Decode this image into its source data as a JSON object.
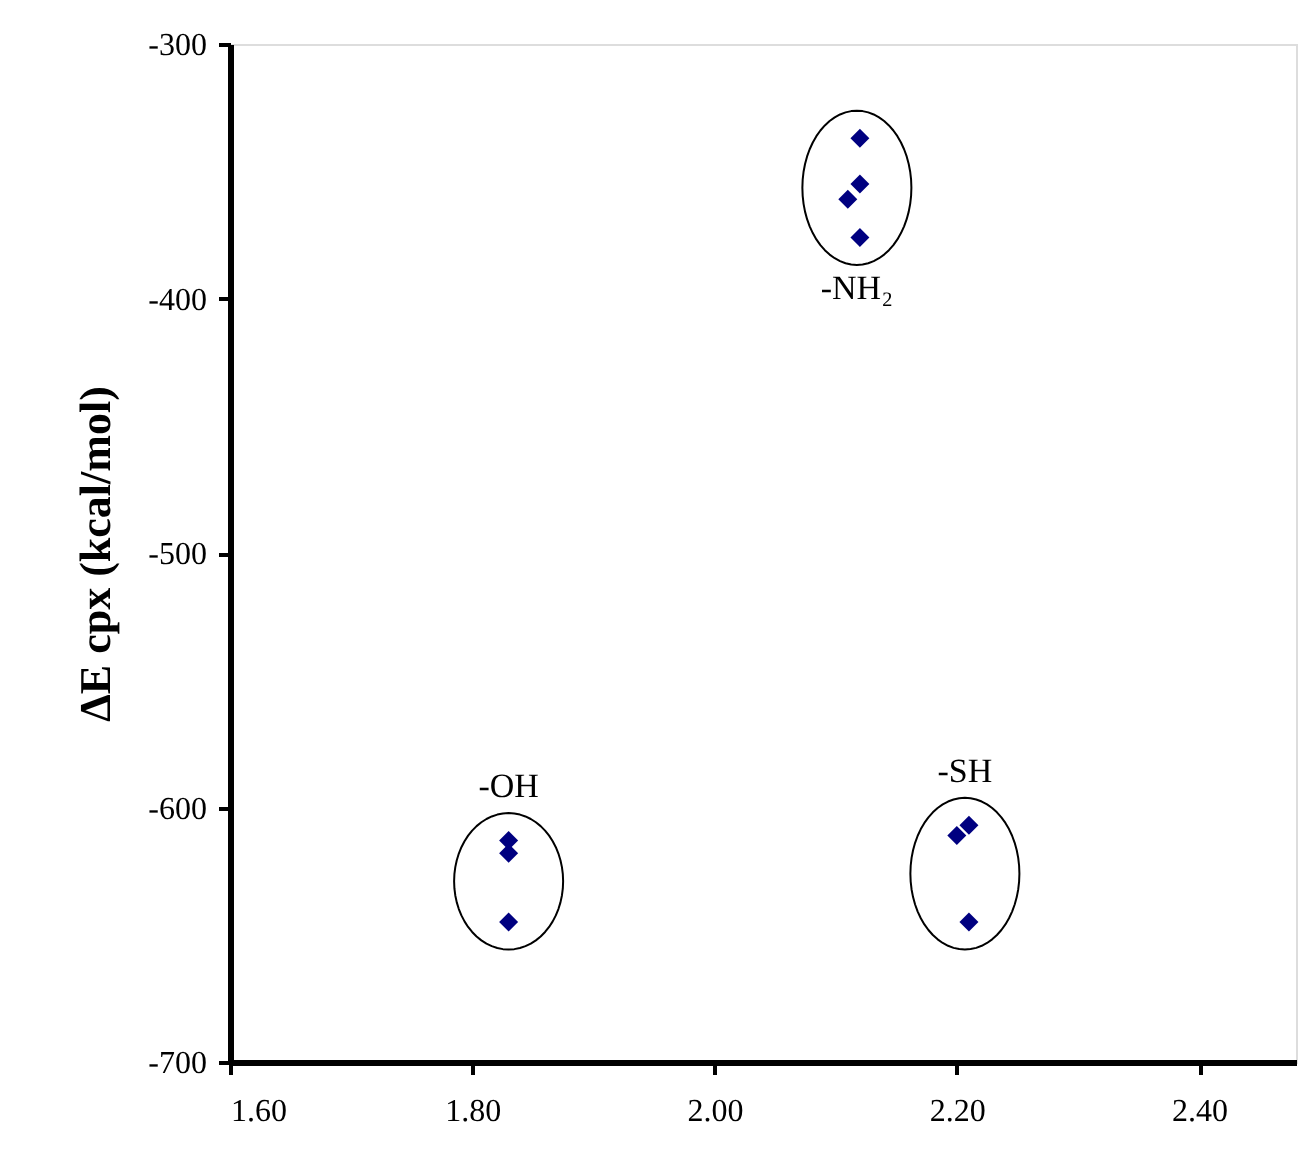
{
  "chart_data": {
    "type": "scatter",
    "ylabel": "ΔE cpx (kcal/mol)",
    "marker": "diamond",
    "grid": false,
    "xlim": [
      1.6,
      2.48
    ],
    "xticks": [
      {
        "value": 1.6,
        "label": "1.60"
      },
      {
        "value": 1.8,
        "label": "1.80"
      },
      {
        "value": 2.0,
        "label": "2.00"
      },
      {
        "value": 2.2,
        "label": "2.20"
      },
      {
        "value": 2.4,
        "label": "2.40"
      }
    ],
    "ylim": [
      -700,
      -300
    ],
    "yticks": [
      -300,
      -400,
      -500,
      -600,
      -700
    ],
    "series": [
      {
        "name": "-NH₂",
        "color": "#000080",
        "x": [
          2.12,
          2.12,
          2.11,
          2.12
        ],
        "values": [
          -337,
          -355,
          -361,
          -376
        ]
      },
      {
        "name": "-OH",
        "color": "#000080",
        "x": [
          1.83,
          1.83,
          1.83
        ],
        "values": [
          -613,
          -618,
          -645
        ]
      },
      {
        "name": "-SH",
        "color": "#000080",
        "x": [
          2.21,
          2.2,
          2.21
        ],
        "values": [
          -607,
          -611,
          -645
        ]
      }
    ]
  }
}
